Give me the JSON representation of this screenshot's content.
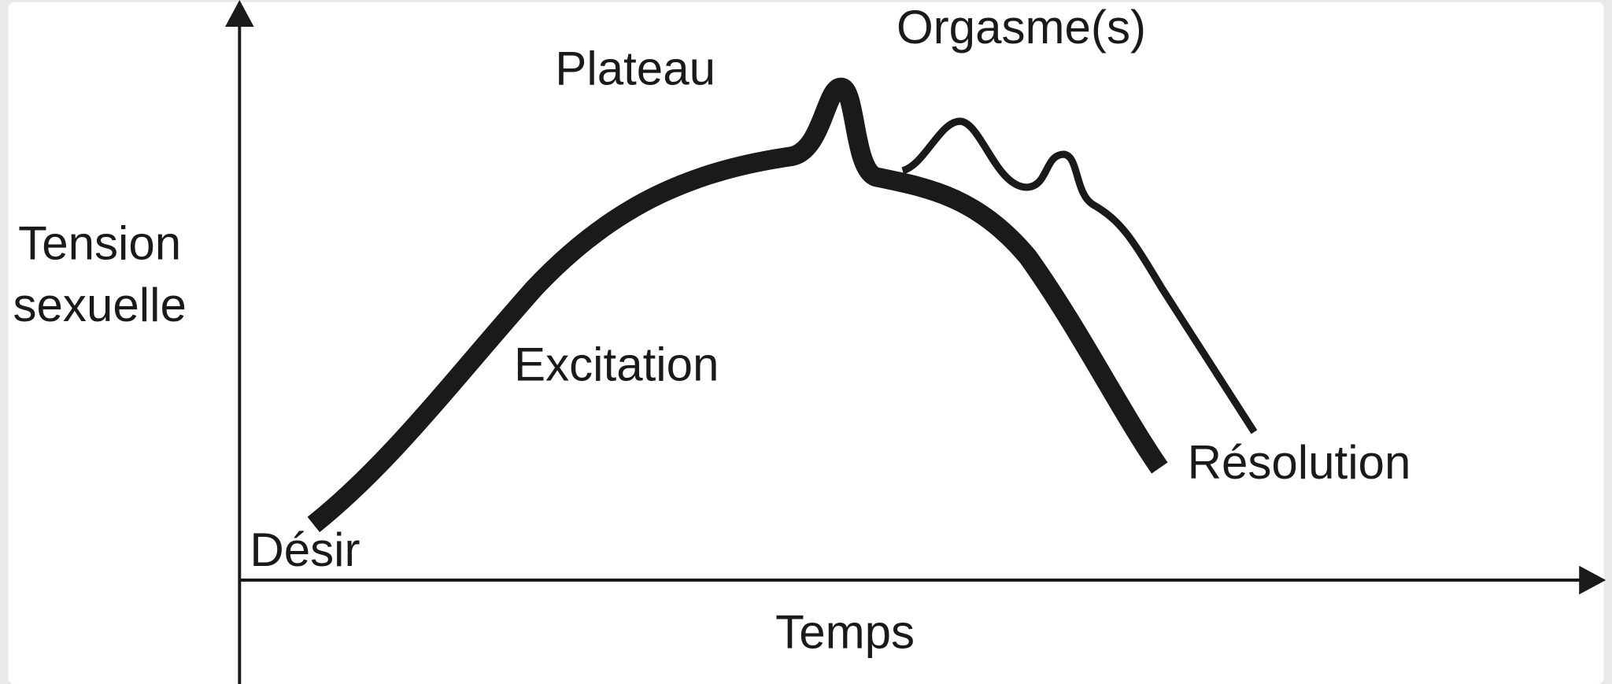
{
  "axes": {
    "y_label": [
      "Tension",
      "sexuelle"
    ],
    "x_label": "Temps"
  },
  "phases": {
    "desir": "Désir",
    "excitation": "Excitation",
    "plateau": "Plateau",
    "orgasme": "Orgasme(s)",
    "resolution": "Résolution"
  }
}
